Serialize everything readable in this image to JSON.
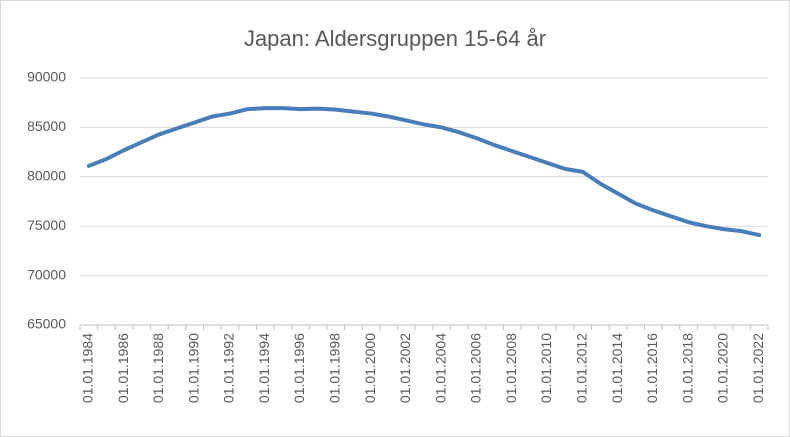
{
  "chart_data": {
    "type": "line",
    "title": "Japan: Aldersgruppen 15-64 år",
    "categories": [
      "01.01.1984",
      null,
      "01.01.1986",
      null,
      "01.01.1988",
      null,
      "01.01.1990",
      null,
      "01.01.1992",
      null,
      "01.01.1994",
      null,
      "01.01.1996",
      null,
      "01.01.1998",
      null,
      "01.01.2000",
      null,
      "01.01.2002",
      null,
      "01.01.2004",
      null,
      "01.01.2006",
      null,
      "01.01.2008",
      null,
      "01.01.2010",
      null,
      "01.01.2012",
      null,
      "01.01.2014",
      null,
      "01.01.2016",
      null,
      "01.01.2018",
      null,
      "01.01.2020",
      null,
      "01.01.2022"
    ],
    "values": [
      81100,
      81800,
      82700,
      83500,
      84300,
      84900,
      85500,
      86100,
      86400,
      86850,
      86950,
      86950,
      86850,
      86900,
      86800,
      86600,
      86400,
      86100,
      85700,
      85300,
      85000,
      84500,
      83900,
      83200,
      82600,
      82000,
      81400,
      80800,
      80500,
      79300,
      78300,
      77300,
      76600,
      76000,
      75400,
      75000,
      74700,
      74500,
      74100
    ],
    "color": "#4a7ebb",
    "ylim": [
      65000,
      90000
    ],
    "yticks": [
      65000,
      70000,
      75000,
      80000,
      85000,
      90000
    ],
    "grid": true
  }
}
